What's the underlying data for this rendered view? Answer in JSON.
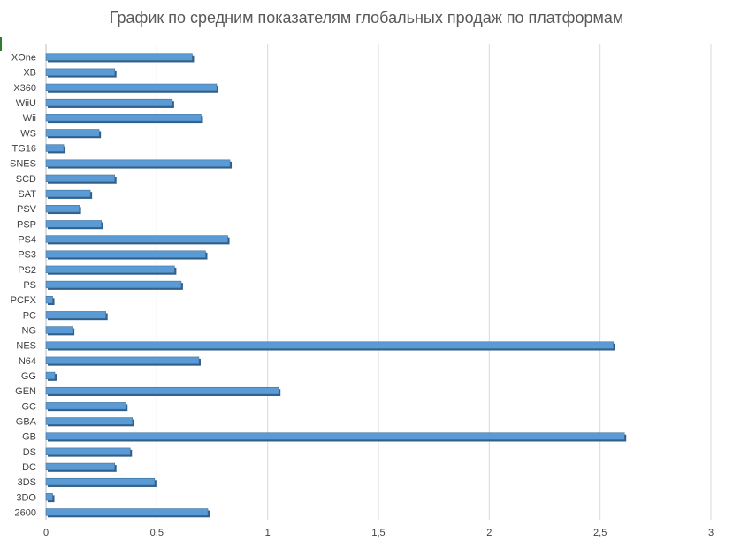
{
  "chart_data": {
    "type": "bar",
    "orientation": "horizontal",
    "title": "График по средним показателям глобальных продаж по платформам",
    "xlabel": "",
    "ylabel": "",
    "xlim": [
      0,
      3
    ],
    "x_ticks": [
      "0",
      "0,5",
      "1",
      "1,5",
      "2",
      "2,5",
      "3"
    ],
    "x_tick_values": [
      0,
      0.5,
      1,
      1.5,
      2,
      2.5,
      3
    ],
    "grid": "vertical",
    "legend": "none",
    "bar_color": "#5b9bd5",
    "categories": [
      "XOne",
      "XB",
      "X360",
      "WiiU",
      "Wii",
      "WS",
      "TG16",
      "SNES",
      "SCD",
      "SAT",
      "PSV",
      "PSP",
      "PS4",
      "PS3",
      "PS2",
      "PS",
      "PCFX",
      "PC",
      "NG",
      "NES",
      "N64",
      "GG",
      "GEN",
      "GC",
      "GBA",
      "GB",
      "DS",
      "DC",
      "3DS",
      "3DO",
      "2600"
    ],
    "values": [
      0.66,
      0.31,
      0.77,
      0.57,
      0.7,
      0.24,
      0.08,
      0.83,
      0.31,
      0.2,
      0.15,
      0.25,
      0.82,
      0.72,
      0.58,
      0.61,
      0.03,
      0.27,
      0.12,
      2.56,
      0.69,
      0.04,
      1.05,
      0.36,
      0.39,
      2.61,
      0.38,
      0.31,
      0.49,
      0.03,
      0.73
    ]
  }
}
